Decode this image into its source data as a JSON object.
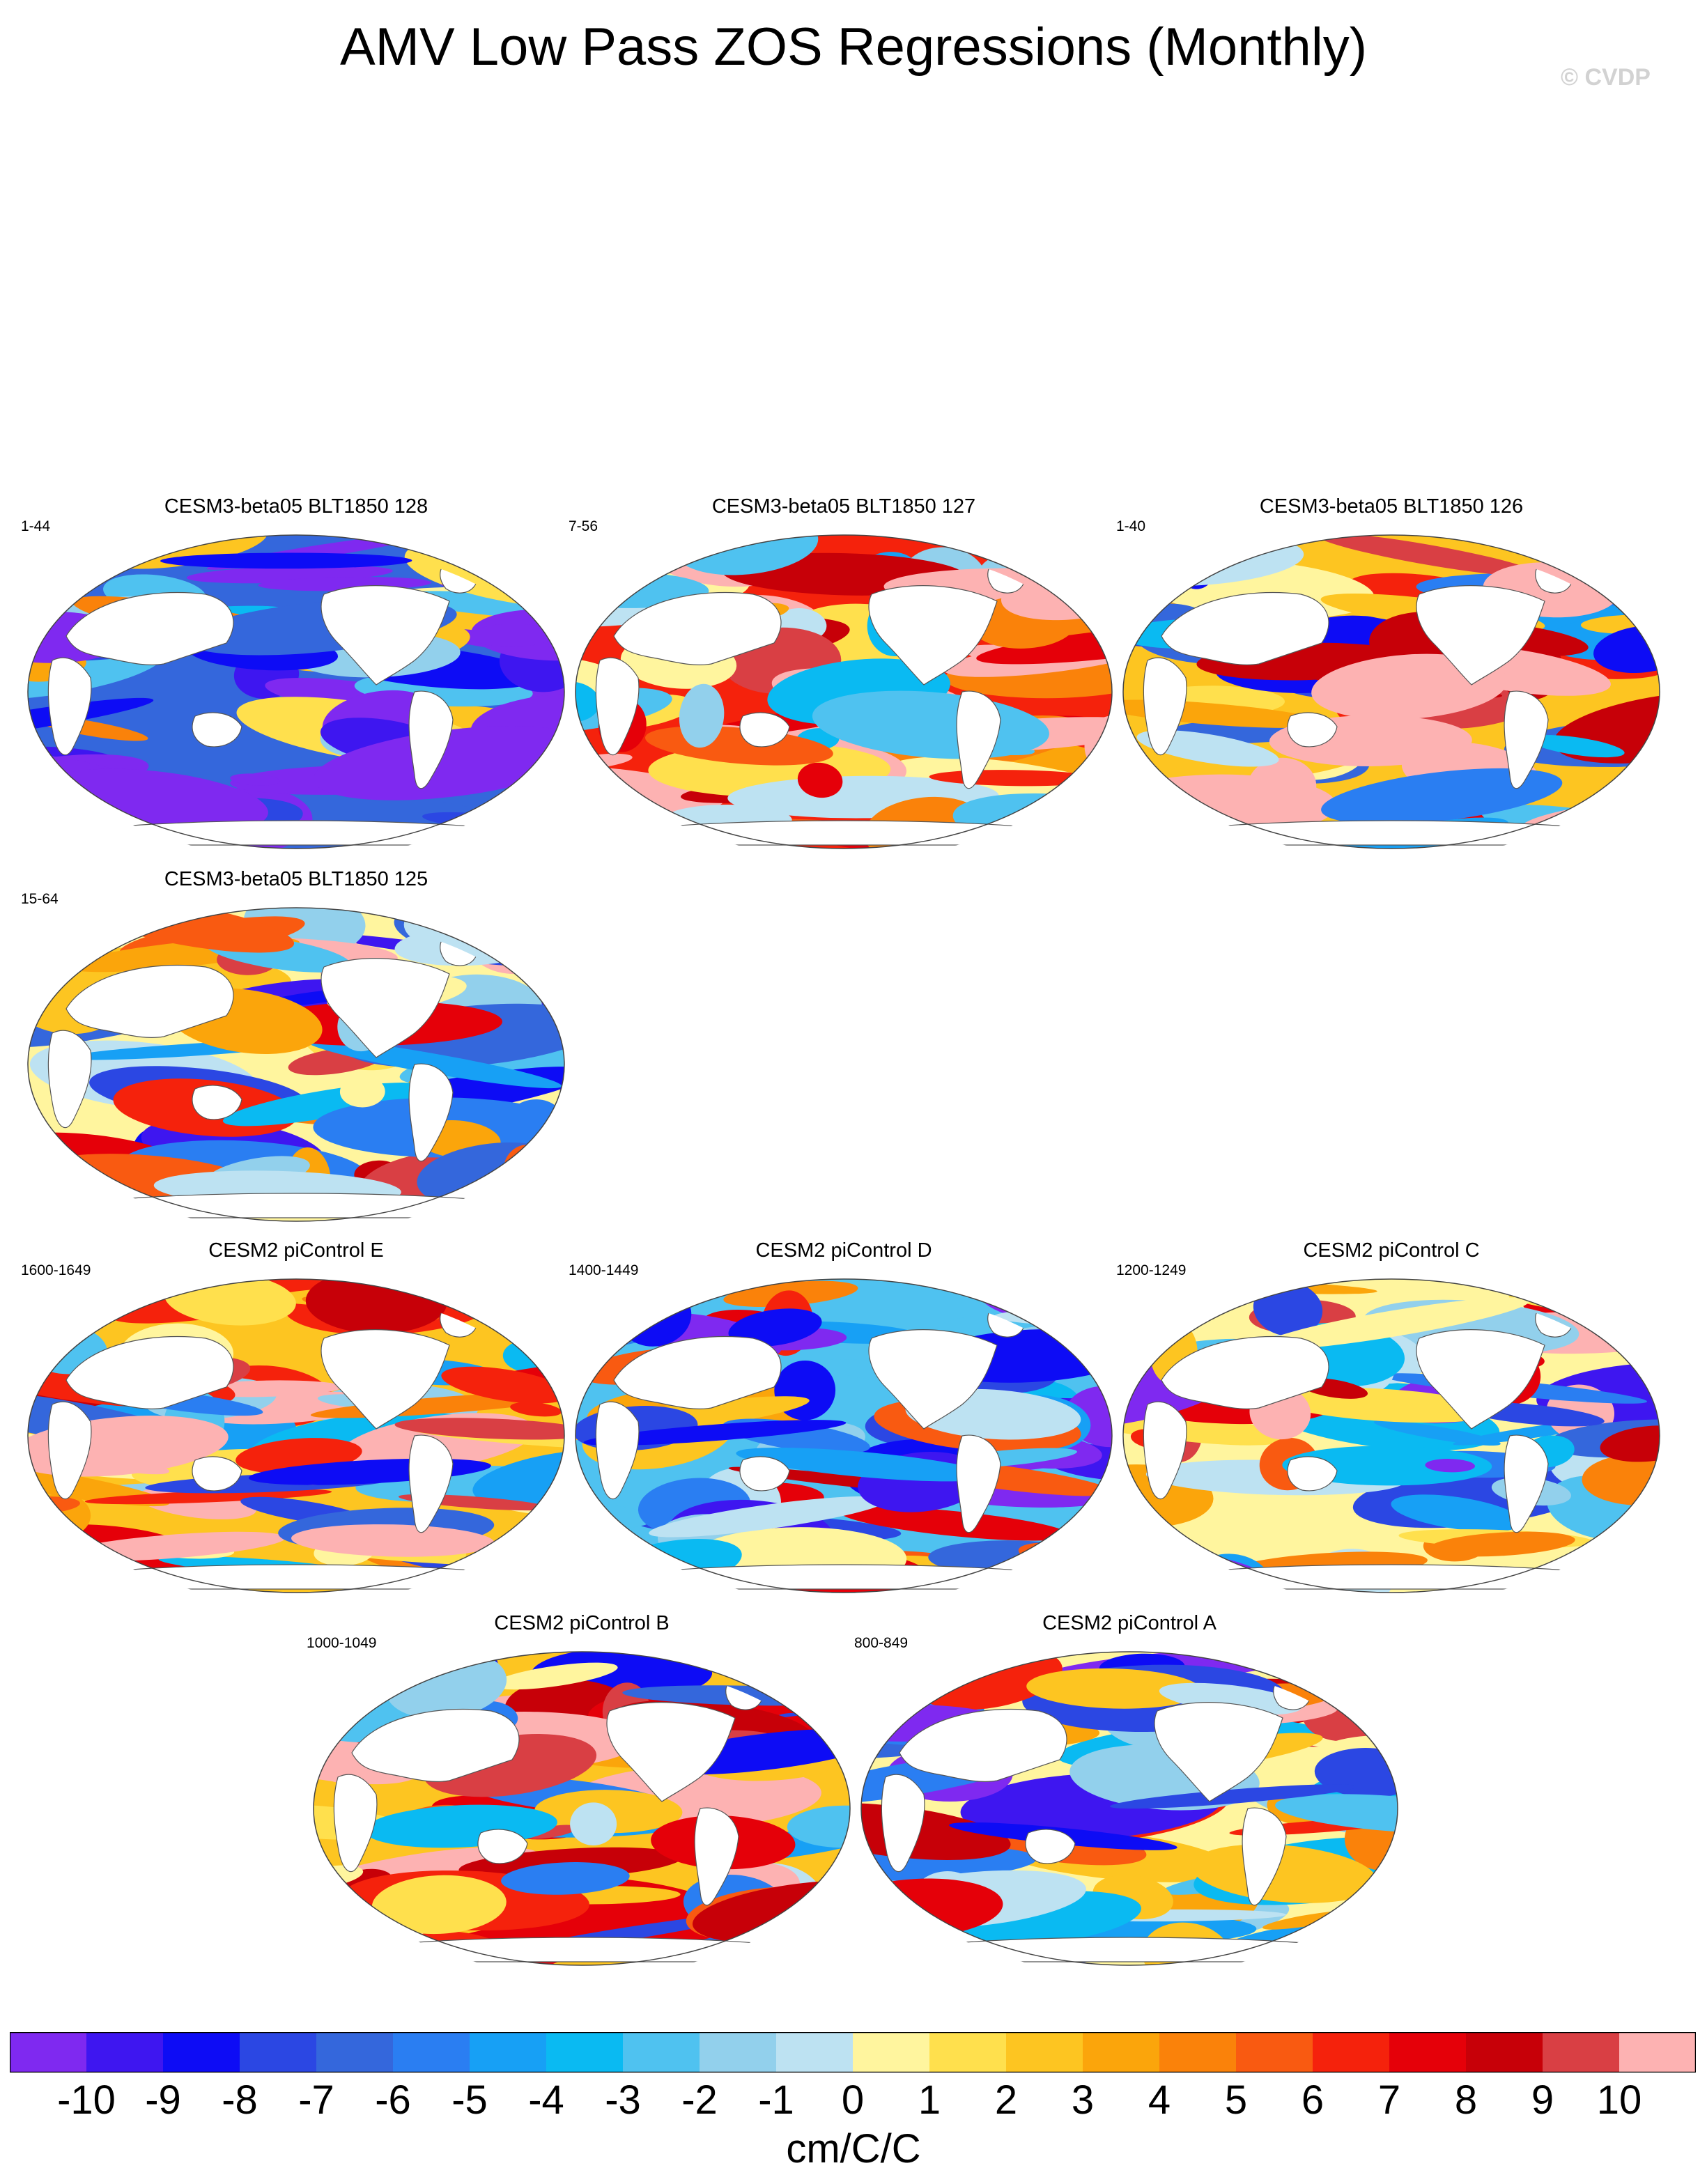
{
  "title": "AMV Low Pass ZOS Regressions (Monthly)",
  "watermark": "© CVDP",
  "units": "cm/C/C",
  "chart_data": {
    "type": "heatmap",
    "projection": "Robinson (global ocean)",
    "variable": "ZOS",
    "panels": [
      {
        "name": "CESM3-beta05 BLT1850 128",
        "years": "1-44",
        "row": 0,
        "col": 0,
        "dominant": "strongly negative"
      },
      {
        "name": "CESM3-beta05 BLT1850 127",
        "years": "7-56",
        "row": 0,
        "col": 1,
        "dominant": "strongly positive"
      },
      {
        "name": "CESM3-beta05 BLT1850 126",
        "years": "1-40",
        "row": 0,
        "col": 2,
        "dominant": "mixed, mostly positive"
      },
      {
        "name": "CESM3-beta05 BLT1850 125",
        "years": "15-64",
        "row": 1,
        "col": 0,
        "dominant": "mixed"
      },
      {
        "name": "CESM2 piControl E",
        "years": "1600-1649",
        "row": 2,
        "col": 0,
        "dominant": "mixed, mostly positive"
      },
      {
        "name": "CESM2 piControl D",
        "years": "1400-1449",
        "row": 2,
        "col": 1,
        "dominant": "mixed, mostly negative"
      },
      {
        "name": "CESM2 piControl C",
        "years": "1200-1249",
        "row": 2,
        "col": 2,
        "dominant": "mixed"
      },
      {
        "name": "CESM2 piControl B",
        "years": "1000-1049",
        "row": 3,
        "col": 0,
        "dominant": "mixed, mostly positive"
      },
      {
        "name": "CESM2 piControl A",
        "years": "800-849",
        "row": 3,
        "col": 1,
        "dominant": "mixed"
      }
    ],
    "colorbar": {
      "levels": [
        -10,
        -9,
        -8,
        -7,
        -6,
        -5,
        -4,
        -3,
        -2,
        -1,
        0,
        1,
        2,
        3,
        4,
        5,
        6,
        7,
        8,
        9,
        10
      ],
      "tick_labels": [
        "-10",
        "-9",
        "-8",
        "-7",
        "-6",
        "-5",
        "-4",
        "-3",
        "-2",
        "-1",
        "0",
        "1",
        "2",
        "3",
        "4",
        "5",
        "6",
        "7",
        "8",
        "9",
        "10"
      ],
      "colors": [
        "#7f29f0",
        "#3e16f0",
        "#0d0cf5",
        "#2b47e3",
        "#3467dc",
        "#2a7ef2",
        "#17a0f5",
        "#0abaf2",
        "#4fc2f0",
        "#92d0ec",
        "#bde2f2",
        "#fff59e",
        "#ffe04d",
        "#fdc521",
        "#fba50b",
        "#fa820a",
        "#f95a11",
        "#f5220c",
        "#e50009",
        "#c70008",
        "#d93f44",
        "#fdb2b2"
      ],
      "label": "cm/C/C"
    }
  }
}
